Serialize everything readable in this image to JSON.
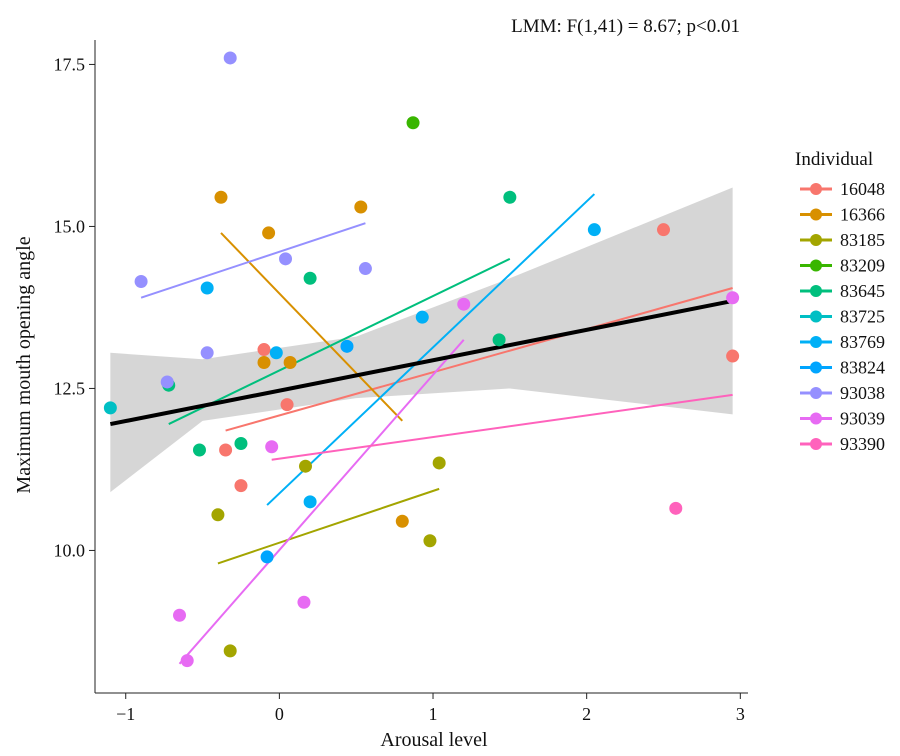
{
  "chart_data": {
    "type": "scatter",
    "title": "",
    "annotation": "LMM: F(1,41) = 8.67; p<0.01",
    "xlabel": "Arousal level",
    "ylabel": "Maximum mouth opening angle",
    "xlim": [
      -1.2,
      3.05
    ],
    "ylim": [
      7.8,
      17.8
    ],
    "x_ticks": [
      -1,
      0,
      1,
      2,
      3
    ],
    "x_tick_labels": [
      "−1",
      "0",
      "1",
      "2",
      "3"
    ],
    "y_ticks": [
      10.0,
      12.5,
      15.0,
      17.5
    ],
    "y_tick_labels": [
      "10.0",
      "12.5",
      "15.0",
      "17.5"
    ],
    "grid": false,
    "legend": {
      "title": "Individual",
      "placement": "right"
    },
    "overall_fit": {
      "x": [
        -1.1,
        2.95
      ],
      "y": [
        11.95,
        13.85
      ],
      "ci_x": [
        -1.1,
        -0.5,
        0.5,
        1.5,
        2.95
      ],
      "ci_lower": [
        10.9,
        12.0,
        12.35,
        12.5,
        12.1
      ],
      "ci_upper": [
        13.05,
        12.95,
        13.3,
        14.2,
        15.6
      ],
      "color": "#000000",
      "band_color": "#cfcfcf"
    },
    "series": [
      {
        "name": "16048",
        "color": "#F8766D",
        "points": [
          [
            -0.35,
            11.55
          ],
          [
            -0.25,
            11.0
          ],
          [
            -0.1,
            13.1
          ],
          [
            0.05,
            12.25
          ],
          [
            2.5,
            14.95
          ],
          [
            2.95,
            13.0
          ]
        ],
        "fit": [
          [
            -0.35,
            11.85
          ],
          [
            2.95,
            14.05
          ]
        ]
      },
      {
        "name": "16366",
        "color": "#D89000",
        "points": [
          [
            -0.38,
            15.45
          ],
          [
            -0.1,
            12.9
          ],
          [
            -0.07,
            14.9
          ],
          [
            0.07,
            12.9
          ],
          [
            0.53,
            15.3
          ],
          [
            0.8,
            10.45
          ]
        ],
        "fit": [
          [
            -0.38,
            14.9
          ],
          [
            0.8,
            12.0
          ]
        ]
      },
      {
        "name": "83185",
        "color": "#A3A500",
        "points": [
          [
            -0.4,
            10.55
          ],
          [
            -0.32,
            8.45
          ],
          [
            0.17,
            11.3
          ],
          [
            0.98,
            10.15
          ],
          [
            1.04,
            11.35
          ]
        ],
        "fit": [
          [
            -0.4,
            9.8
          ],
          [
            1.04,
            10.95
          ]
        ]
      },
      {
        "name": "83209",
        "color": "#39B600",
        "points": [
          [
            0.87,
            16.6
          ]
        ],
        "fit": null
      },
      {
        "name": "83645",
        "color": "#00BF7D",
        "points": [
          [
            -0.72,
            12.55
          ],
          [
            -0.52,
            11.55
          ],
          [
            -0.25,
            11.65
          ],
          [
            0.2,
            14.2
          ],
          [
            1.43,
            13.25
          ],
          [
            1.5,
            15.45
          ]
        ],
        "fit": [
          [
            -0.72,
            11.95
          ],
          [
            1.5,
            14.5
          ]
        ]
      },
      {
        "name": "83725",
        "color": "#00BFC4",
        "points": [
          [
            -1.1,
            12.2
          ]
        ],
        "fit": null
      },
      {
        "name": "83769",
        "color": "#00B0F6",
        "points": [
          [
            -0.47,
            14.05
          ],
          [
            -0.02,
            13.05
          ],
          [
            0.2,
            10.75
          ],
          [
            0.93,
            13.6
          ],
          [
            2.05,
            14.95
          ]
        ],
        "fit": [
          [
            -0.08,
            10.7
          ],
          [
            2.05,
            15.5
          ]
        ]
      },
      {
        "name": "83824",
        "color": "#00A5FF",
        "points": [
          [
            -0.08,
            9.9
          ],
          [
            0.44,
            13.15
          ]
        ],
        "fit": null
      },
      {
        "name": "93038",
        "color": "#9590FF",
        "points": [
          [
            -0.9,
            14.15
          ],
          [
            -0.32,
            17.6
          ],
          [
            -0.47,
            13.05
          ],
          [
            0.04,
            14.5
          ],
          [
            0.56,
            14.35
          ],
          [
            -0.73,
            12.6
          ]
        ],
        "fit": [
          [
            -0.9,
            13.9
          ],
          [
            0.56,
            15.05
          ]
        ]
      },
      {
        "name": "93039",
        "color": "#E76BF3",
        "points": [
          [
            -0.65,
            9.0
          ],
          [
            -0.6,
            8.3
          ],
          [
            -0.05,
            11.6
          ],
          [
            0.16,
            9.2
          ],
          [
            1.2,
            13.8
          ],
          [
            2.95,
            13.9
          ]
        ],
        "fit": [
          [
            -0.65,
            8.25
          ],
          [
            1.2,
            13.25
          ]
        ]
      },
      {
        "name": "93390",
        "color": "#FF62BC",
        "points": [
          [
            2.58,
            10.65
          ]
        ],
        "fit": [
          [
            -0.05,
            11.4
          ],
          [
            2.95,
            12.4
          ]
        ]
      }
    ]
  }
}
